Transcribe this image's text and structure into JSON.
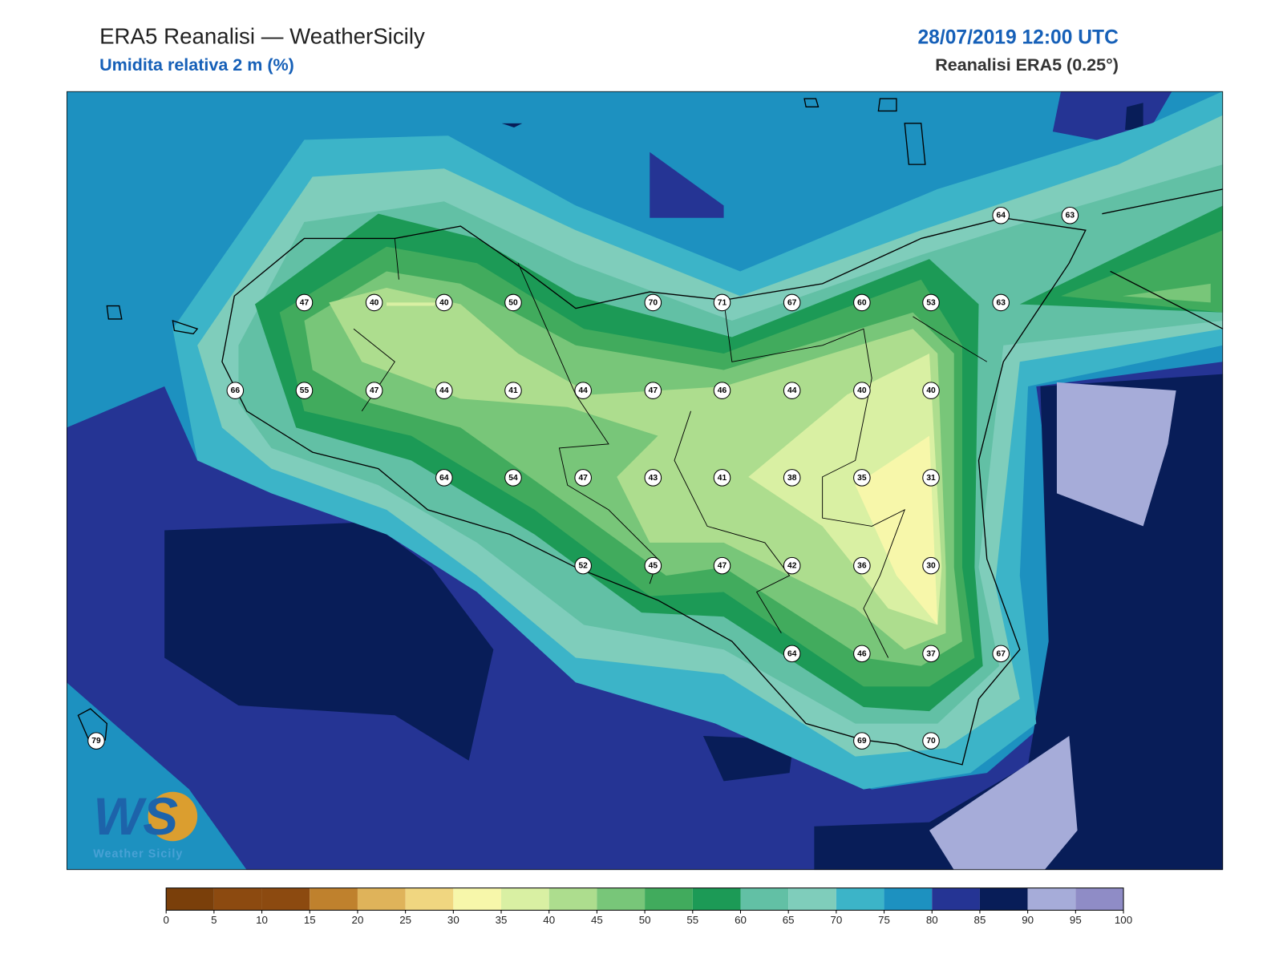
{
  "header": {
    "title": "ERA5 Reanalisi — WeatherSicily",
    "subtitle": "Umidita relativa 2 m (%)",
    "datetime": "28/07/2019 12:00 UTC",
    "source": "Reanalisi ERA5 (0.25°)"
  },
  "stations": [
    47,
    40,
    40,
    50,
    70,
    71,
    67,
    60,
    53,
    63,
    66,
    55,
    47,
    44,
    41,
    44,
    47,
    46,
    44,
    40,
    40,
    64,
    54,
    47,
    43,
    41,
    38,
    35,
    31,
    52,
    45,
    47,
    42,
    36,
    30,
    64,
    46,
    37,
    67,
    69,
    70,
    64,
    63,
    79
  ],
  "logo": {
    "letters": "WS",
    "text": "Weather Sicily"
  },
  "colorbar": {
    "ticks": [
      0,
      5,
      10,
      15,
      20,
      25,
      30,
      35,
      40,
      45,
      50,
      55,
      60,
      65,
      70,
      75,
      80,
      85,
      90,
      95,
      100
    ],
    "colors": [
      "#7a3f0a",
      "#8c4a10",
      "#8c4a10",
      "#bf812d",
      "#dfb35a",
      "#f0d680",
      "#f7f7aa",
      "#d9f0a3",
      "#addd8e",
      "#78c679",
      "#41ab5d",
      "#1c9a56",
      "#62c0a5",
      "#7fcdbb",
      "#3cb4c8",
      "#1d91c0",
      "#253494",
      "#081d58",
      "#a6acd9",
      "#8f8cc6"
    ]
  }
}
